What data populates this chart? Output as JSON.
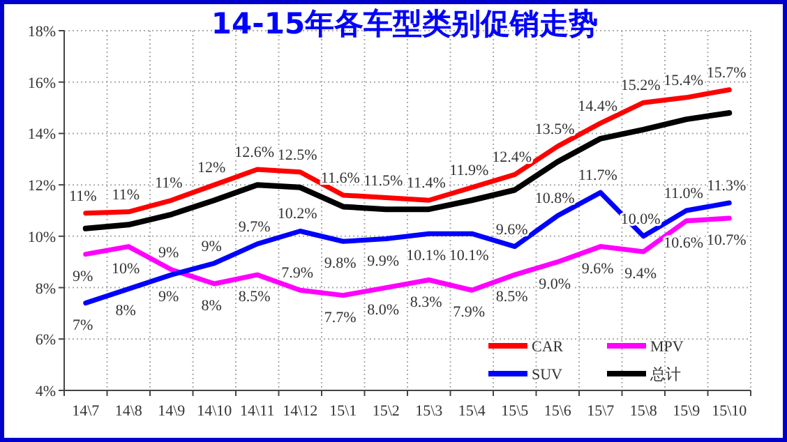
{
  "chart_data": {
    "type": "line",
    "title": "14-15年各车型类别促销走势",
    "categories": [
      "14\\7",
      "14\\8",
      "14\\9",
      "14\\10",
      "14\\11",
      "14\\12",
      "15\\1",
      "15\\2",
      "15\\3",
      "15\\4",
      "15\\5",
      "15\\6",
      "15\\7",
      "15\\8",
      "15\\9",
      "15\\10"
    ],
    "series": [
      {
        "name": "CAR",
        "color": "#ff0000",
        "values": [
          10.9,
          10.95,
          11.4,
          12.0,
          12.6,
          12.5,
          11.6,
          11.5,
          11.4,
          11.9,
          12.4,
          13.5,
          14.4,
          15.2,
          15.4,
          15.7
        ],
        "value_labels": [
          "11%",
          "11%",
          "11%",
          "12%",
          "12.6%",
          "12.5%",
          "11.6%",
          "11.5%",
          "11.4%",
          "11.9%",
          "12.4%",
          "13.5%",
          "14.4%",
          "15.2%",
          "15.4%",
          "15.7%"
        ]
      },
      {
        "name": "MPV",
        "color": "#ff00ff",
        "values": [
          9.3,
          9.6,
          8.7,
          8.15,
          8.5,
          7.9,
          7.7,
          8.0,
          8.3,
          7.9,
          8.5,
          9.0,
          9.6,
          9.4,
          10.6,
          10.7
        ],
        "value_labels": [
          "9%",
          "10%",
          "9%",
          "8%",
          "8.5%",
          "7.9%",
          "7.7%",
          "8.0%",
          "8.3%",
          "7.9%",
          "8.5%",
          "9.0%",
          "9.6%",
          "9.4%",
          "10.6%",
          "10.7%"
        ]
      },
      {
        "name": "SUV",
        "color": "#0000ff",
        "values": [
          7.4,
          7.95,
          8.5,
          8.95,
          9.7,
          10.2,
          9.8,
          9.9,
          10.1,
          10.1,
          9.6,
          10.8,
          11.7,
          10.0,
          11.0,
          11.3
        ],
        "value_labels": [
          "7%",
          "8%",
          "9%",
          "9%",
          "9.7%",
          "10.2%",
          "9.8%",
          "9.9%",
          "10.1%",
          "10.1%",
          "9.6%",
          "10.8%",
          "11.7%",
          "10.0%",
          "11.0%",
          "11.3%"
        ]
      },
      {
        "name": "总计",
        "color": "#000000",
        "values": [
          10.3,
          10.45,
          10.85,
          11.4,
          12.0,
          11.9,
          11.15,
          11.05,
          11.05,
          11.4,
          11.8,
          12.9,
          13.8,
          14.15,
          14.55,
          14.8
        ]
      }
    ],
    "ylim": [
      4,
      18
    ],
    "yticks": [
      {
        "value": 4,
        "label": "4%"
      },
      {
        "value": 6,
        "label": "6%"
      },
      {
        "value": 8,
        "label": "8%"
      },
      {
        "value": 10,
        "label": "10%"
      },
      {
        "value": 12,
        "label": "12%"
      },
      {
        "value": 14,
        "label": "14%"
      },
      {
        "value": 16,
        "label": "16%"
      },
      {
        "value": 18,
        "label": "18%"
      }
    ],
    "grid": true,
    "legend": "bottom",
    "marker": "none",
    "line_style": "solid"
  }
}
